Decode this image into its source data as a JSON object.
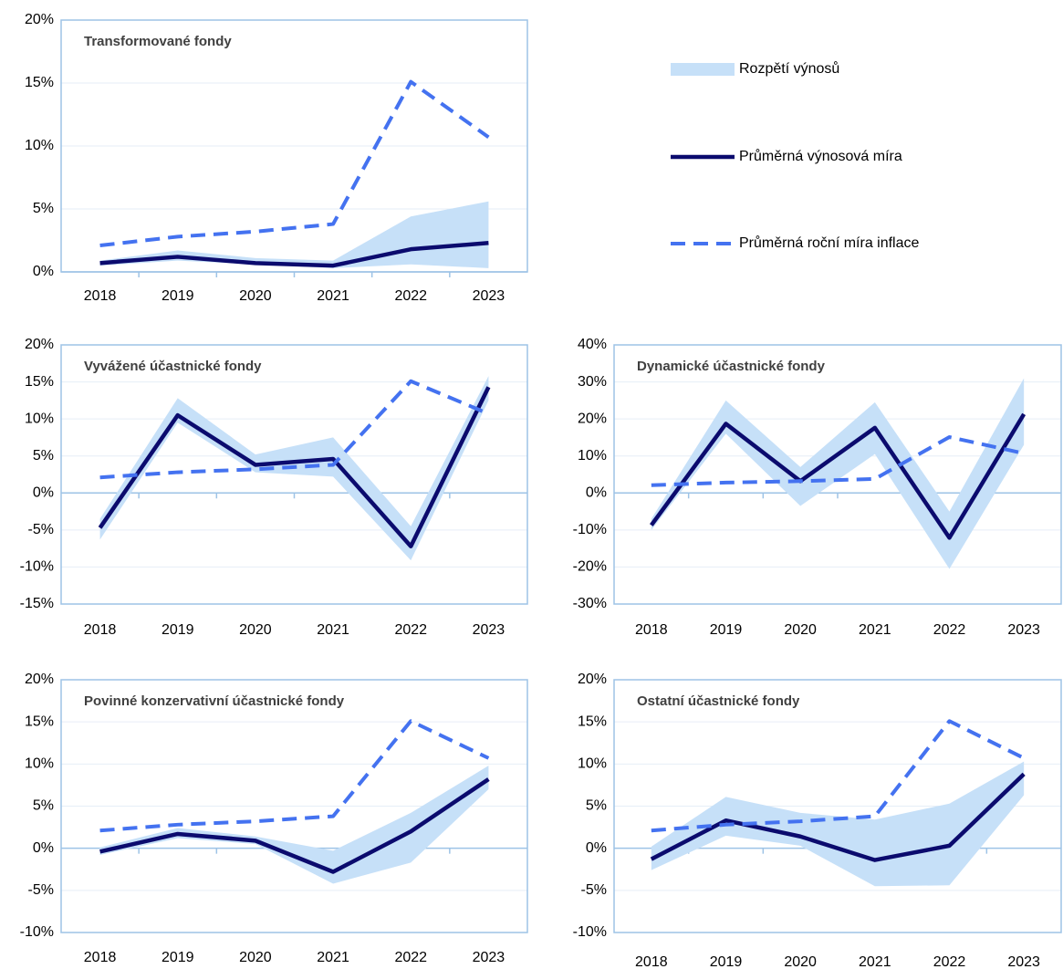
{
  "chart_data": [
    {
      "type": "line",
      "title": "Transformované fondy",
      "categories": [
        "2018",
        "2019",
        "2020",
        "2021",
        "2022",
        "2023"
      ],
      "ylim": [
        0,
        20
      ],
      "yticks": [
        {
          "value": 0,
          "label": "0%"
        },
        {
          "value": 5,
          "label": "5%"
        },
        {
          "value": 10,
          "label": "10%"
        },
        {
          "value": 15,
          "label": "15%"
        },
        {
          "value": 20,
          "label": "20%"
        }
      ],
      "grid": true,
      "series": [
        {
          "name": "Rozpětí výnosů",
          "type": "area",
          "color": "#c6e0f8",
          "low": [
            0.5,
            0.9,
            0.6,
            0.3,
            0.6,
            0.3
          ],
          "values": [
            0.9,
            1.7,
            1.1,
            0.9,
            4.4,
            5.6
          ]
        },
        {
          "name": "Průměrná výnosová míra",
          "type": "line",
          "color": "#0b0b6e",
          "values": [
            0.7,
            1.2,
            0.7,
            0.5,
            1.8,
            2.3
          ]
        },
        {
          "name": "Průměrná roční míra inflace",
          "type": "line",
          "dashed": true,
          "color": "#4472f0",
          "values": [
            2.1,
            2.8,
            3.2,
            3.8,
            15.1,
            10.7
          ]
        }
      ]
    },
    {
      "type": "line",
      "title": "Vyvážené účastnické fondy",
      "categories": [
        "2018",
        "2019",
        "2020",
        "2021",
        "2022",
        "2023"
      ],
      "ylim": [
        -15,
        20
      ],
      "yticks": [
        {
          "value": -15,
          "label": "-15%"
        },
        {
          "value": -10,
          "label": "-10%"
        },
        {
          "value": -5,
          "label": "-5%"
        },
        {
          "value": 0,
          "label": "0%"
        },
        {
          "value": 5,
          "label": "5%"
        },
        {
          "value": 10,
          "label": "10%"
        },
        {
          "value": 15,
          "label": "15%"
        },
        {
          "value": 20,
          "label": "20%"
        }
      ],
      "grid": true,
      "series": [
        {
          "name": "Rozpětí výnosů",
          "type": "area",
          "color": "#c6e0f8",
          "low": [
            -6.3,
            9.5,
            2.8,
            2.2,
            -9.1,
            12.5
          ],
          "values": [
            -3.5,
            12.8,
            5.2,
            7.5,
            -4.5,
            15.8
          ]
        },
        {
          "name": "Průměrná výnosová míra",
          "type": "line",
          "color": "#0b0b6e",
          "values": [
            -4.7,
            10.5,
            3.8,
            4.6,
            -7.2,
            14.3
          ]
        },
        {
          "name": "Průměrná roční míra inflace",
          "type": "line",
          "dashed": true,
          "color": "#4472f0",
          "values": [
            2.1,
            2.8,
            3.2,
            3.8,
            15.1,
            10.7
          ]
        }
      ]
    },
    {
      "type": "line",
      "title": "Dynamické účastnické fondy",
      "categories": [
        "2018",
        "2019",
        "2020",
        "2021",
        "2022",
        "2023"
      ],
      "ylim": [
        -30,
        40
      ],
      "yticks": [
        {
          "value": -30,
          "label": "-30%"
        },
        {
          "value": -20,
          "label": "-20%"
        },
        {
          "value": -10,
          "label": "-10%"
        },
        {
          "value": 0,
          "label": "0%"
        },
        {
          "value": 10,
          "label": "10%"
        },
        {
          "value": 20,
          "label": "20%"
        },
        {
          "value": 30,
          "label": "30%"
        },
        {
          "value": 40,
          "label": "40%"
        }
      ],
      "grid": true,
      "series": [
        {
          "name": "Rozpětí výnosů",
          "type": "area",
          "color": "#c6e0f8",
          "low": [
            -10,
            16,
            -3.5,
            10.5,
            -20.5,
            13
          ],
          "values": [
            -7,
            25,
            7,
            24.5,
            -5,
            31
          ]
        },
        {
          "name": "Průměrná výnosová míra",
          "type": "line",
          "color": "#0b0b6e",
          "values": [
            -8.7,
            18.7,
            3.2,
            17.6,
            -12.1,
            21.3
          ]
        },
        {
          "name": "Průměrná roční míra inflace",
          "type": "line",
          "dashed": true,
          "color": "#4472f0",
          "values": [
            2.1,
            2.8,
            3.2,
            3.8,
            15.1,
            10.7
          ]
        }
      ]
    },
    {
      "type": "line",
      "title": "Povinné konzervativní účastnické fondy",
      "categories": [
        "2018",
        "2019",
        "2020",
        "2021",
        "2022",
        "2023"
      ],
      "ylim": [
        -10,
        20
      ],
      "yticks": [
        {
          "value": -10,
          "label": "-10%"
        },
        {
          "value": -5,
          "label": "-5%"
        },
        {
          "value": 0,
          "label": "0%"
        },
        {
          "value": 5,
          "label": "5%"
        },
        {
          "value": 10,
          "label": "10%"
        },
        {
          "value": 15,
          "label": "15%"
        },
        {
          "value": 20,
          "label": "20%"
        }
      ],
      "grid": true,
      "series": [
        {
          "name": "Rozpětí výnosů",
          "type": "area",
          "color": "#c6e0f8",
          "low": [
            -0.8,
            1.2,
            0.5,
            -4.2,
            -1.7,
            7.0
          ],
          "values": [
            0.1,
            2.4,
            1.4,
            -0.3,
            4.2,
            9.8
          ]
        },
        {
          "name": "Průměrná výnosová míra",
          "type": "line",
          "color": "#0b0b6e",
          "values": [
            -0.4,
            1.7,
            0.9,
            -2.8,
            2.0,
            8.2
          ]
        },
        {
          "name": "Průměrná roční míra inflace",
          "type": "line",
          "dashed": true,
          "color": "#4472f0",
          "values": [
            2.1,
            2.8,
            3.2,
            3.8,
            15.1,
            10.7
          ]
        }
      ]
    },
    {
      "type": "line",
      "title": "Ostatní účastnické fondy",
      "categories": [
        "2018",
        "2019",
        "2020",
        "2021",
        "2022",
        "2023"
      ],
      "ylim": [
        -10,
        20
      ],
      "yticks": [
        {
          "value": -10,
          "label": "-10%"
        },
        {
          "value": -5,
          "label": "-5%"
        },
        {
          "value": 0,
          "label": "0%"
        },
        {
          "value": 5,
          "label": "5%"
        },
        {
          "value": 10,
          "label": "10%"
        },
        {
          "value": 15,
          "label": "15%"
        },
        {
          "value": 20,
          "label": "20%"
        }
      ],
      "grid": true,
      "series": [
        {
          "name": "Rozpětí výnosů",
          "type": "area",
          "color": "#c6e0f8",
          "low": [
            -2.6,
            1.5,
            0.3,
            -4.5,
            -4.4,
            6.3
          ],
          "values": [
            0.2,
            6.1,
            4.2,
            3.4,
            5.3,
            10.3
          ]
        },
        {
          "name": "Průměrná výnosová míra",
          "type": "line",
          "color": "#0b0b6e",
          "values": [
            -1.3,
            3.3,
            1.4,
            -1.4,
            0.3,
            8.8
          ]
        },
        {
          "name": "Průměrná roční míra inflace",
          "type": "line",
          "dashed": true,
          "color": "#4472f0",
          "values": [
            2.1,
            2.8,
            3.2,
            3.8,
            15.1,
            10.7
          ]
        }
      ]
    }
  ]
}
